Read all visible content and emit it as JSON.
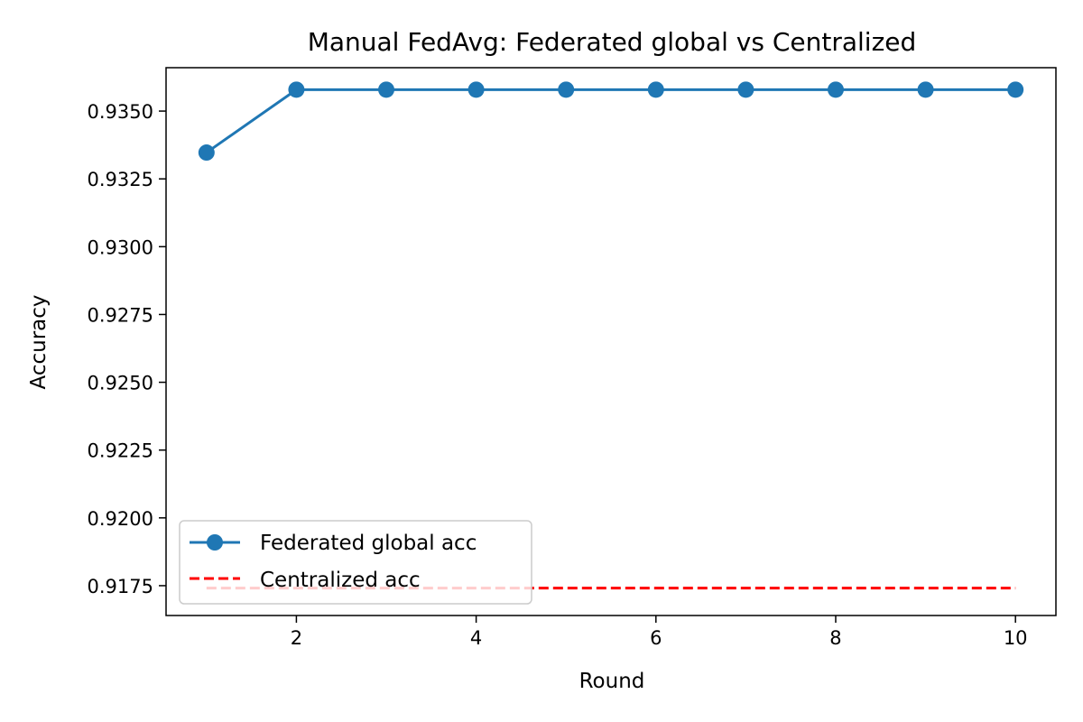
{
  "chart_data": {
    "type": "line",
    "title": "Manual FedAvg: Federated global vs Centralized",
    "xlabel": "Round",
    "ylabel": "Accuracy",
    "x": [
      1,
      2,
      3,
      4,
      5,
      6,
      7,
      8,
      9,
      10
    ],
    "xlim": [
      0.55,
      10.45
    ],
    "ylim": [
      0.9164,
      0.9366
    ],
    "xticks": [
      2,
      4,
      6,
      8,
      10
    ],
    "xtick_labels": [
      "2",
      "4",
      "6",
      "8",
      "10"
    ],
    "yticks": [
      0.9175,
      0.92,
      0.9225,
      0.925,
      0.9275,
      0.93,
      0.9325,
      0.935
    ],
    "ytick_labels": [
      "0.9175",
      "0.9200",
      "0.9225",
      "0.9250",
      "0.9275",
      "0.9300",
      "0.9325",
      "0.9350"
    ],
    "series": [
      {
        "name": "Federated global acc",
        "style": "solid-marker",
        "color": "#1f77b4",
        "values": [
          0.93347,
          0.93579,
          0.93579,
          0.93579,
          0.93579,
          0.93579,
          0.93579,
          0.93579,
          0.93579,
          0.93579
        ]
      },
      {
        "name": "Centralized acc",
        "style": "dashed",
        "color": "#ff0000",
        "values": [
          0.91741,
          0.91741,
          0.91741,
          0.91741,
          0.91741,
          0.91741,
          0.91741,
          0.91741,
          0.91741,
          0.91741
        ]
      }
    ],
    "grid": false,
    "legend_position": "lower-left"
  }
}
